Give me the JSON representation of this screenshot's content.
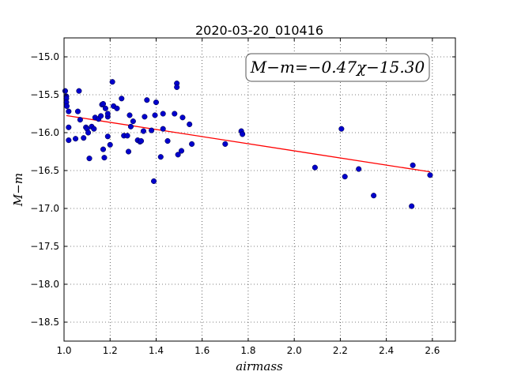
{
  "chart_data": {
    "type": "scatter",
    "title": "2020-03-20_010416",
    "xlabel": "airmass",
    "ylabel": "M−m",
    "xlim": [
      1.0,
      2.7
    ],
    "ylim": [
      -18.75,
      -14.75
    ],
    "y_inverted": true,
    "grid": true,
    "x_ticks": [
      1.0,
      1.2,
      1.4,
      1.6,
      1.8,
      2.0,
      2.2,
      2.4,
      2.6
    ],
    "x_tick_labels": [
      "1.0",
      "1.2",
      "1.4",
      "1.6",
      "1.8",
      "2.0",
      "2.2",
      "2.4",
      "2.6"
    ],
    "y_ticks": [
      -15.0,
      -15.5,
      -16.0,
      -16.5,
      -17.0,
      -17.5,
      -18.0,
      -18.5
    ],
    "y_tick_labels": [
      "−15.0",
      "−15.5",
      "−16.0",
      "−16.5",
      "−17.0",
      "−17.5",
      "−18.0",
      "−18.5"
    ],
    "point_color": "#0000cc",
    "fit_color": "#ff0000",
    "annotation": "M−m=−0.47χ−15.30",
    "annotation_position": "top-right",
    "fit": {
      "slope": -0.47,
      "intercept": -15.3,
      "x_range": [
        1.01,
        2.59
      ]
    },
    "points": [
      [
        1.005,
        -15.45
      ],
      [
        1.01,
        -15.52
      ],
      [
        1.01,
        -15.55
      ],
      [
        1.01,
        -15.6
      ],
      [
        1.012,
        -15.65
      ],
      [
        1.02,
        -15.72
      ],
      [
        1.02,
        -15.93
      ],
      [
        1.02,
        -16.1
      ],
      [
        1.05,
        -16.08
      ],
      [
        1.06,
        -15.72
      ],
      [
        1.065,
        -15.45
      ],
      [
        1.07,
        -15.83
      ],
      [
        1.085,
        -16.07
      ],
      [
        1.095,
        -15.93
      ],
      [
        1.1,
        -15.95
      ],
      [
        1.105,
        -16.0
      ],
      [
        1.11,
        -16.34
      ],
      [
        1.12,
        -15.92
      ],
      [
        1.13,
        -15.95
      ],
      [
        1.135,
        -15.8
      ],
      [
        1.15,
        -15.82
      ],
      [
        1.16,
        -15.78
      ],
      [
        1.165,
        -15.63
      ],
      [
        1.17,
        -15.62
      ],
      [
        1.17,
        -16.22
      ],
      [
        1.175,
        -16.33
      ],
      [
        1.18,
        -15.68
      ],
      [
        1.19,
        -15.79
      ],
      [
        1.19,
        -15.75
      ],
      [
        1.19,
        -16.05
      ],
      [
        1.2,
        -16.16
      ],
      [
        1.21,
        -15.33
      ],
      [
        1.215,
        -15.65
      ],
      [
        1.23,
        -15.68
      ],
      [
        1.25,
        -15.55
      ],
      [
        1.26,
        -16.04
      ],
      [
        1.275,
        -16.04
      ],
      [
        1.28,
        -16.25
      ],
      [
        1.285,
        -15.77
      ],
      [
        1.29,
        -15.92
      ],
      [
        1.3,
        -15.85
      ],
      [
        1.32,
        -16.1
      ],
      [
        1.33,
        -16.12
      ],
      [
        1.335,
        -16.11
      ],
      [
        1.345,
        -15.98
      ],
      [
        1.35,
        -15.79
      ],
      [
        1.36,
        -15.57
      ],
      [
        1.38,
        -15.97
      ],
      [
        1.39,
        -16.64
      ],
      [
        1.395,
        -15.77
      ],
      [
        1.4,
        -15.6
      ],
      [
        1.42,
        -16.32
      ],
      [
        1.43,
        -15.75
      ],
      [
        1.43,
        -15.95
      ],
      [
        1.45,
        -16.11
      ],
      [
        1.48,
        -15.75
      ],
      [
        1.49,
        -15.35
      ],
      [
        1.49,
        -15.4
      ],
      [
        1.495,
        -16.29
      ],
      [
        1.51,
        -16.24
      ],
      [
        1.515,
        -15.8
      ],
      [
        1.545,
        -15.89
      ],
      [
        1.555,
        -16.15
      ],
      [
        1.7,
        -16.15
      ],
      [
        1.77,
        -15.98
      ],
      [
        1.775,
        -16.02
      ],
      [
        2.09,
        -16.46
      ],
      [
        2.205,
        -15.95
      ],
      [
        2.22,
        -16.58
      ],
      [
        2.28,
        -16.48
      ],
      [
        2.345,
        -16.83
      ],
      [
        2.51,
        -16.97
      ],
      [
        2.515,
        -16.43
      ],
      [
        2.59,
        -16.56
      ]
    ]
  }
}
